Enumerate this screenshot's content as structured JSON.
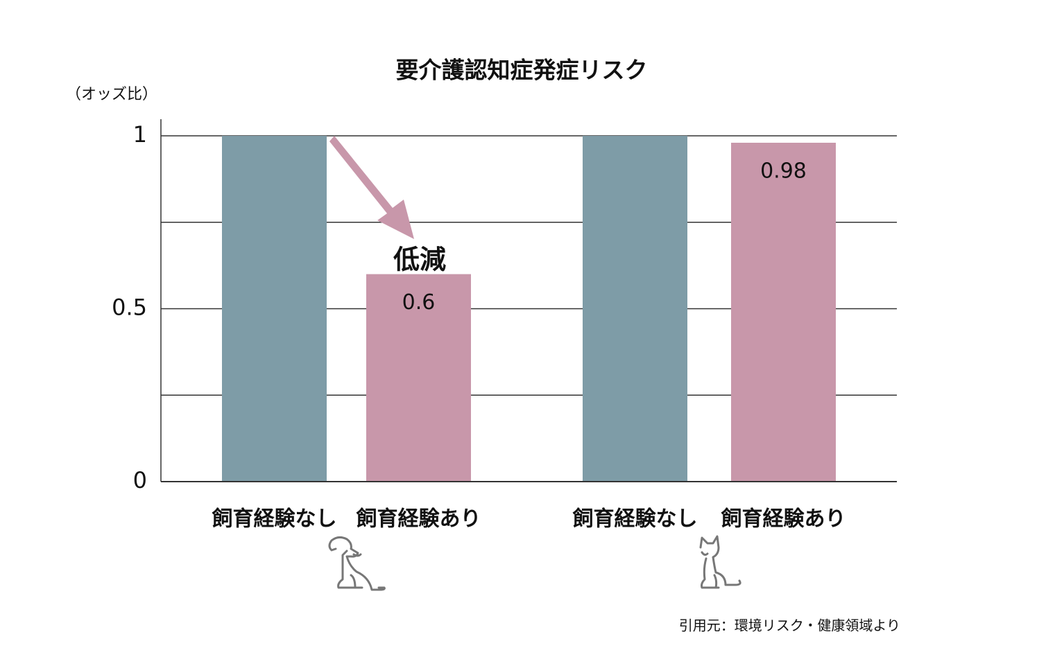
{
  "chart_data": {
    "type": "bar",
    "title": "要介護認知症発症リスク",
    "y_label": "（オッズ比）",
    "categories": [
      "飼育経験なし",
      "飼育経験あり",
      "飼育経験なし",
      "飼育経験あり"
    ],
    "values": [
      1,
      0.6,
      1,
      0.98
    ],
    "value_labels": [
      null,
      "0.6",
      null,
      "0.98"
    ],
    "colors": [
      "#7e9ca7",
      "#c897aa",
      "#7e9ca7",
      "#c897aa"
    ],
    "ylim": [
      0,
      1
    ],
    "yticks": [
      0,
      {
        "value": 0.25,
        "label": null
      },
      0.5,
      {
        "value": 0.75,
        "label": null
      },
      1
    ],
    "grid": true,
    "annotation": "低減",
    "source": "引用元：環境リスク・健康領域より"
  }
}
